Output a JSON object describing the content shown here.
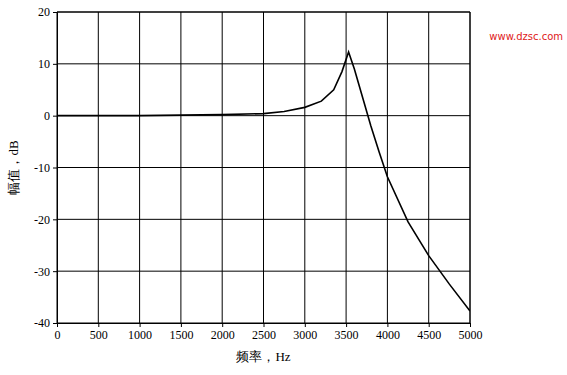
{
  "chart_data": {
    "type": "line",
    "x_label": "频率，Hz",
    "y_label": "幅值，dB",
    "annotations": [
      "www.dzsc.com"
    ],
    "x": [
      0,
      500,
      1000,
      1500,
      2000,
      2500,
      2750,
      3000,
      3200,
      3350,
      3450,
      3530,
      3600,
      3700,
      3800,
      3900,
      4000,
      4250,
      4500,
      4750,
      5000
    ],
    "values": [
      0,
      0,
      0,
      0.1,
      0.2,
      0.4,
      0.8,
      1.6,
      2.8,
      5,
      8.5,
      12.3,
      9,
      3.5,
      -2,
      -7,
      -11.8,
      -20.5,
      -27,
      -32.5,
      -37.7
    ],
    "color": "#000000",
    "xlim": [
      0,
      5000
    ],
    "xticks": [
      0,
      500,
      1000,
      1500,
      2000,
      2500,
      3000,
      3500,
      4000,
      4500,
      5000
    ],
    "ylim": [
      -40,
      20
    ],
    "yticks": [
      -40,
      -30,
      -20,
      -10,
      0,
      10,
      20
    ],
    "grid": true
  }
}
